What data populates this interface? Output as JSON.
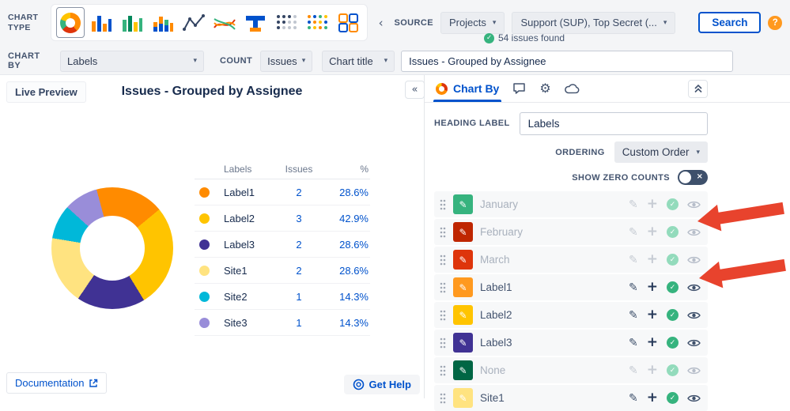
{
  "header": {
    "chart_type_label": "CHART TYPE",
    "chart_type_icons": [
      "donut-chart",
      "bar-chart",
      "grouped-bar-chart",
      "stacked-bar-chart",
      "line-chart",
      "multi-line-chart",
      "funnel-chart",
      "dot-matrix-chart",
      "dot-grid-chart",
      "tile-chart"
    ],
    "source_label": "SOURCE",
    "projects_dropdown_value": "Projects",
    "filter_dropdown_value": "Support (SUP), Top Secret (...",
    "search_button_label": "Search",
    "issues_found_text": "54 issues found"
  },
  "toolbar": {
    "chart_by_label": "CHART BY",
    "chart_by_value": "Labels",
    "count_label": "COUNT",
    "count_value": "Issues",
    "chart_title_dropdown_value": "Chart title",
    "chart_title_input_value": "Issues - Grouped by Assignee"
  },
  "preview": {
    "live_preview_label": "Live Preview",
    "chart_heading": "Issues - Grouped by Assignee",
    "documentation_link_label": "Documentation",
    "get_help_label": "Get Help"
  },
  "chart_data": {
    "type": "pie",
    "donut": true,
    "title": "Issues - Grouped by Assignee",
    "legend_position": "right",
    "legend_columns": [
      "Labels",
      "Issues",
      "%"
    ],
    "categories": [
      "Label1",
      "Label2",
      "Label3",
      "Site1",
      "Site2",
      "Site3"
    ],
    "values": [
      2,
      3,
      2,
      2,
      1,
      1
    ],
    "percent_labels": [
      "28.6%",
      "42.9%",
      "28.6%",
      "28.6%",
      "14.3%",
      "14.3%"
    ],
    "colors": [
      "#FF8B00",
      "#FFC400",
      "#403294",
      "#FFE380",
      "#00B8D9",
      "#998DD9"
    ],
    "start_angle_deg": -15
  },
  "config_panel": {
    "active_tab_label": "Chart By",
    "heading_label": "HEADING LABEL",
    "heading_input_value": "Labels",
    "ordering_label": "ORDERING",
    "ordering_value": "Custom Order",
    "show_zero_counts_label": "SHOW ZERO COUNTS",
    "items": [
      {
        "label": "January",
        "color": "#36B37E",
        "enabled": false
      },
      {
        "label": "February",
        "color": "#BF2600",
        "enabled": false
      },
      {
        "label": "March",
        "color": "#DE350B",
        "enabled": false
      },
      {
        "label": "Label1",
        "color": "#FF991F",
        "enabled": true
      },
      {
        "label": "Label2",
        "color": "#FFC400",
        "enabled": true
      },
      {
        "label": "Label3",
        "color": "#403294",
        "enabled": true
      },
      {
        "label": "None",
        "color": "#006644",
        "enabled": false
      },
      {
        "label": "Site1",
        "color": "#FFE380",
        "enabled": true
      }
    ]
  },
  "annotations": {
    "arrow_color": "#E8432D",
    "arrows": [
      "points-to-february-visibility",
      "points-to-label1-visibility"
    ]
  },
  "icons": {
    "chevron_down": "▾",
    "chevron_left": "‹",
    "collapse_left": "«",
    "question_mark": "?",
    "pencil": "✎",
    "plus": "+",
    "check": "✓",
    "cross": "×",
    "gear": "⚙",
    "external_link": "↗"
  }
}
